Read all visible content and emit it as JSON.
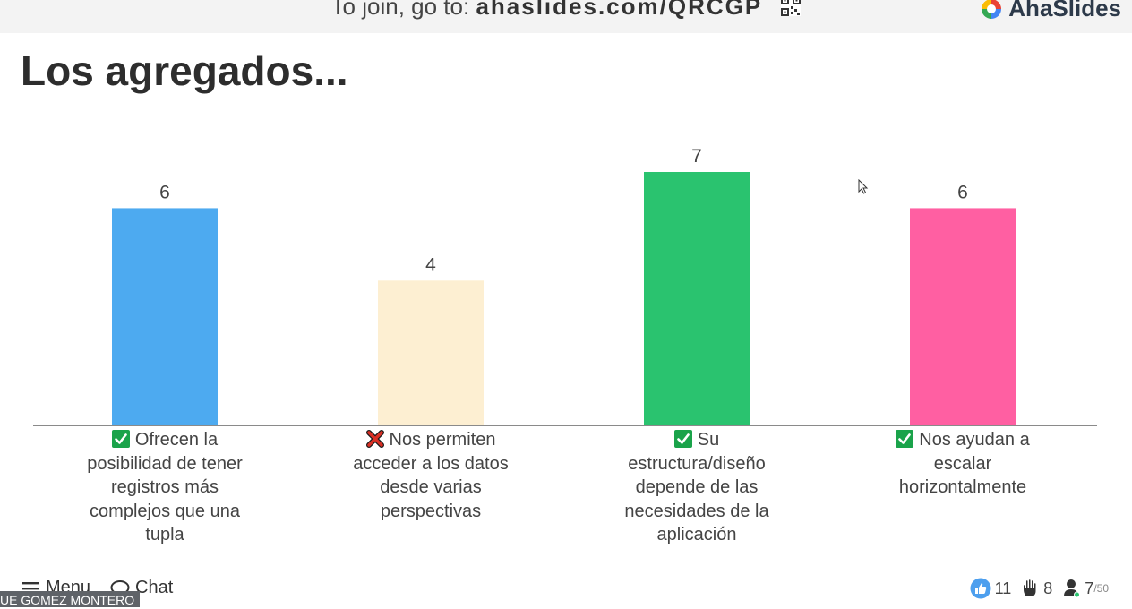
{
  "header": {
    "join_prefix": "To join, go to: ",
    "join_code": "ahaslides.com/QRCGP",
    "brand_name": "AhaSlides"
  },
  "slide": {
    "title": "Los agregados..."
  },
  "chart_data": {
    "type": "bar",
    "categories": [
      "Ofrecen la posibilidad de tener registros más complejos que una tupla",
      "Nos permiten acceder a los datos desde varias perspectivas",
      "Su estructura/diseño depende de las necesidades de la aplicación",
      "Nos ayudan a escalar horizontalmente"
    ],
    "values": [
      6,
      4,
      7,
      6
    ],
    "correct": [
      true,
      false,
      true,
      true
    ],
    "colors": [
      "#4daaf0",
      "#fdefd2",
      "#2ac36f",
      "#ff5fa2"
    ],
    "ylim": [
      0,
      7
    ],
    "grid": false,
    "label_lines": [
      [
        "Ofrecen la",
        "posibilidad de tener",
        "registros más",
        "complejos que una",
        "tupla"
      ],
      [
        "Nos permiten",
        "acceder a los datos",
        "desde varias",
        "perspectivas"
      ],
      [
        "Su",
        "estructura/diseño",
        "depende de las",
        "necesidades de la",
        "aplicación"
      ],
      [
        "Nos ayudan a",
        "escalar",
        "horizontalmente"
      ]
    ]
  },
  "footer": {
    "menu_label": "Menu",
    "chat_label": "Chat",
    "presenter_name": "UE GOMEZ MONTERO",
    "likes": "11",
    "hands": "8",
    "participants": "7",
    "participants_max": "/50"
  },
  "icons": [
    "qr-code-icon",
    "ahaslides-logo-icon",
    "check-icon",
    "cross-icon",
    "menu-icon",
    "chat-icon",
    "like-icon",
    "hand-icon",
    "person-icon",
    "cursor-icon"
  ]
}
